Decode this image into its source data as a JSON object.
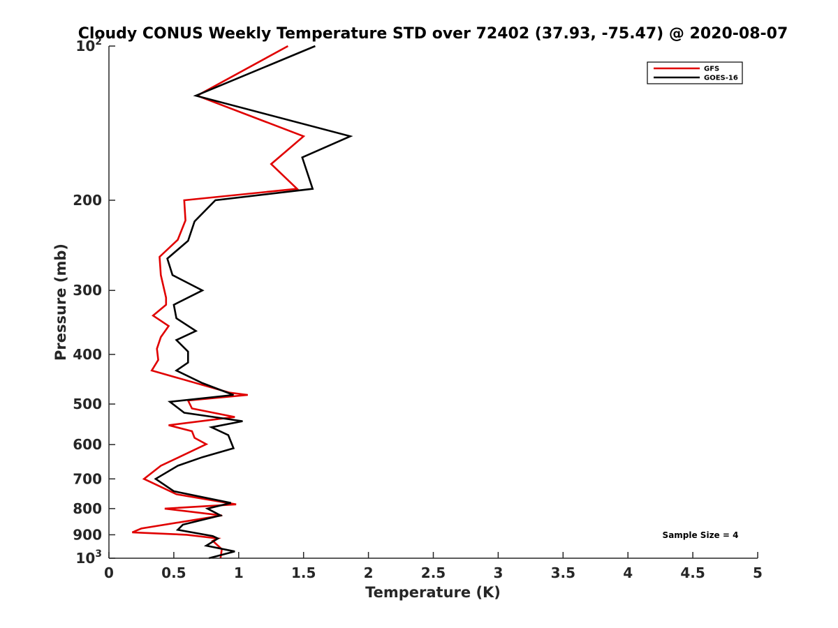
{
  "chart_data": {
    "type": "line",
    "title": "Cloudy CONUS Weekly Temperature STD over 72402 (37.93, -75.47) @ 2020-08-07",
    "xlabel": "Temperature (K)",
    "ylabel": "Pressure (mb)",
    "xlim": [
      0,
      5
    ],
    "ylim": [
      100,
      1000
    ],
    "y_scale": "log",
    "y_reversed": true,
    "x_ticks": [
      "0",
      "0.5",
      "1",
      "1.5",
      "2",
      "2.5",
      "3",
      "3.5",
      "4",
      "4.5",
      "5"
    ],
    "y_ticks": [
      {
        "value": 100,
        "base": "10",
        "exp": "2"
      },
      {
        "value": 200,
        "label": "200"
      },
      {
        "value": 300,
        "label": "300"
      },
      {
        "value": 400,
        "label": "400"
      },
      {
        "value": 500,
        "label": "500"
      },
      {
        "value": 600,
        "label": "600"
      },
      {
        "value": 700,
        "label": "700"
      },
      {
        "value": 800,
        "label": "800"
      },
      {
        "value": 900,
        "label": "900"
      },
      {
        "value": 1000,
        "base": "10",
        "exp": "3"
      }
    ],
    "grid": false,
    "legend_position": "top-right",
    "annotation": "Sample Size = 4",
    "series": [
      {
        "name": "GFS",
        "color": "#e00000",
        "points": [
          [
            1.38,
            100
          ],
          [
            0.68,
            125
          ],
          [
            1.5,
            150
          ],
          [
            1.25,
            170
          ],
          [
            1.45,
            190
          ],
          [
            0.58,
            200
          ],
          [
            0.59,
            219
          ],
          [
            0.53,
            239
          ],
          [
            0.39,
            258
          ],
          [
            0.4,
            280
          ],
          [
            0.44,
            310
          ],
          [
            0.44,
            320
          ],
          [
            0.34,
            336
          ],
          [
            0.46,
            352
          ],
          [
            0.4,
            370
          ],
          [
            0.37,
            390
          ],
          [
            0.38,
            410
          ],
          [
            0.33,
            430
          ],
          [
            0.93,
            475
          ],
          [
            1.07,
            480
          ],
          [
            0.61,
            492
          ],
          [
            0.64,
            510
          ],
          [
            0.97,
            530
          ],
          [
            0.46,
            550
          ],
          [
            0.64,
            565
          ],
          [
            0.66,
            582
          ],
          [
            0.75,
            599
          ],
          [
            0.54,
            635
          ],
          [
            0.4,
            660
          ],
          [
            0.27,
            700
          ],
          [
            0.52,
            750
          ],
          [
            0.98,
            785
          ],
          [
            0.43,
            800
          ],
          [
            0.87,
            825
          ],
          [
            0.25,
            875
          ],
          [
            0.18,
            890
          ],
          [
            0.6,
            900
          ],
          [
            0.84,
            915
          ],
          [
            0.8,
            925
          ],
          [
            0.87,
            960
          ],
          [
            0.86,
            1000
          ]
        ]
      },
      {
        "name": "GOES-16",
        "color": "#000000",
        "points": [
          [
            1.59,
            100
          ],
          [
            0.67,
            125
          ],
          [
            1.86,
            150
          ],
          [
            1.49,
            165
          ],
          [
            1.57,
            190
          ],
          [
            0.82,
            200
          ],
          [
            0.66,
            220
          ],
          [
            0.61,
            240
          ],
          [
            0.45,
            260
          ],
          [
            0.49,
            280
          ],
          [
            0.72,
            300
          ],
          [
            0.5,
            320
          ],
          [
            0.52,
            340
          ],
          [
            0.67,
            360
          ],
          [
            0.52,
            375
          ],
          [
            0.61,
            395
          ],
          [
            0.61,
            415
          ],
          [
            0.52,
            430
          ],
          [
            0.72,
            455
          ],
          [
            0.96,
            480
          ],
          [
            0.47,
            495
          ],
          [
            0.58,
            520
          ],
          [
            1.03,
            540
          ],
          [
            0.79,
            555
          ],
          [
            0.92,
            575
          ],
          [
            0.96,
            610
          ],
          [
            0.72,
            635
          ],
          [
            0.53,
            660
          ],
          [
            0.36,
            700
          ],
          [
            0.5,
            740
          ],
          [
            0.94,
            780
          ],
          [
            0.76,
            800
          ],
          [
            0.86,
            825
          ],
          [
            0.57,
            860
          ],
          [
            0.53,
            880
          ],
          [
            0.8,
            905
          ],
          [
            0.84,
            915
          ],
          [
            0.75,
            945
          ],
          [
            0.97,
            970
          ],
          [
            0.77,
            1000
          ]
        ]
      }
    ]
  }
}
